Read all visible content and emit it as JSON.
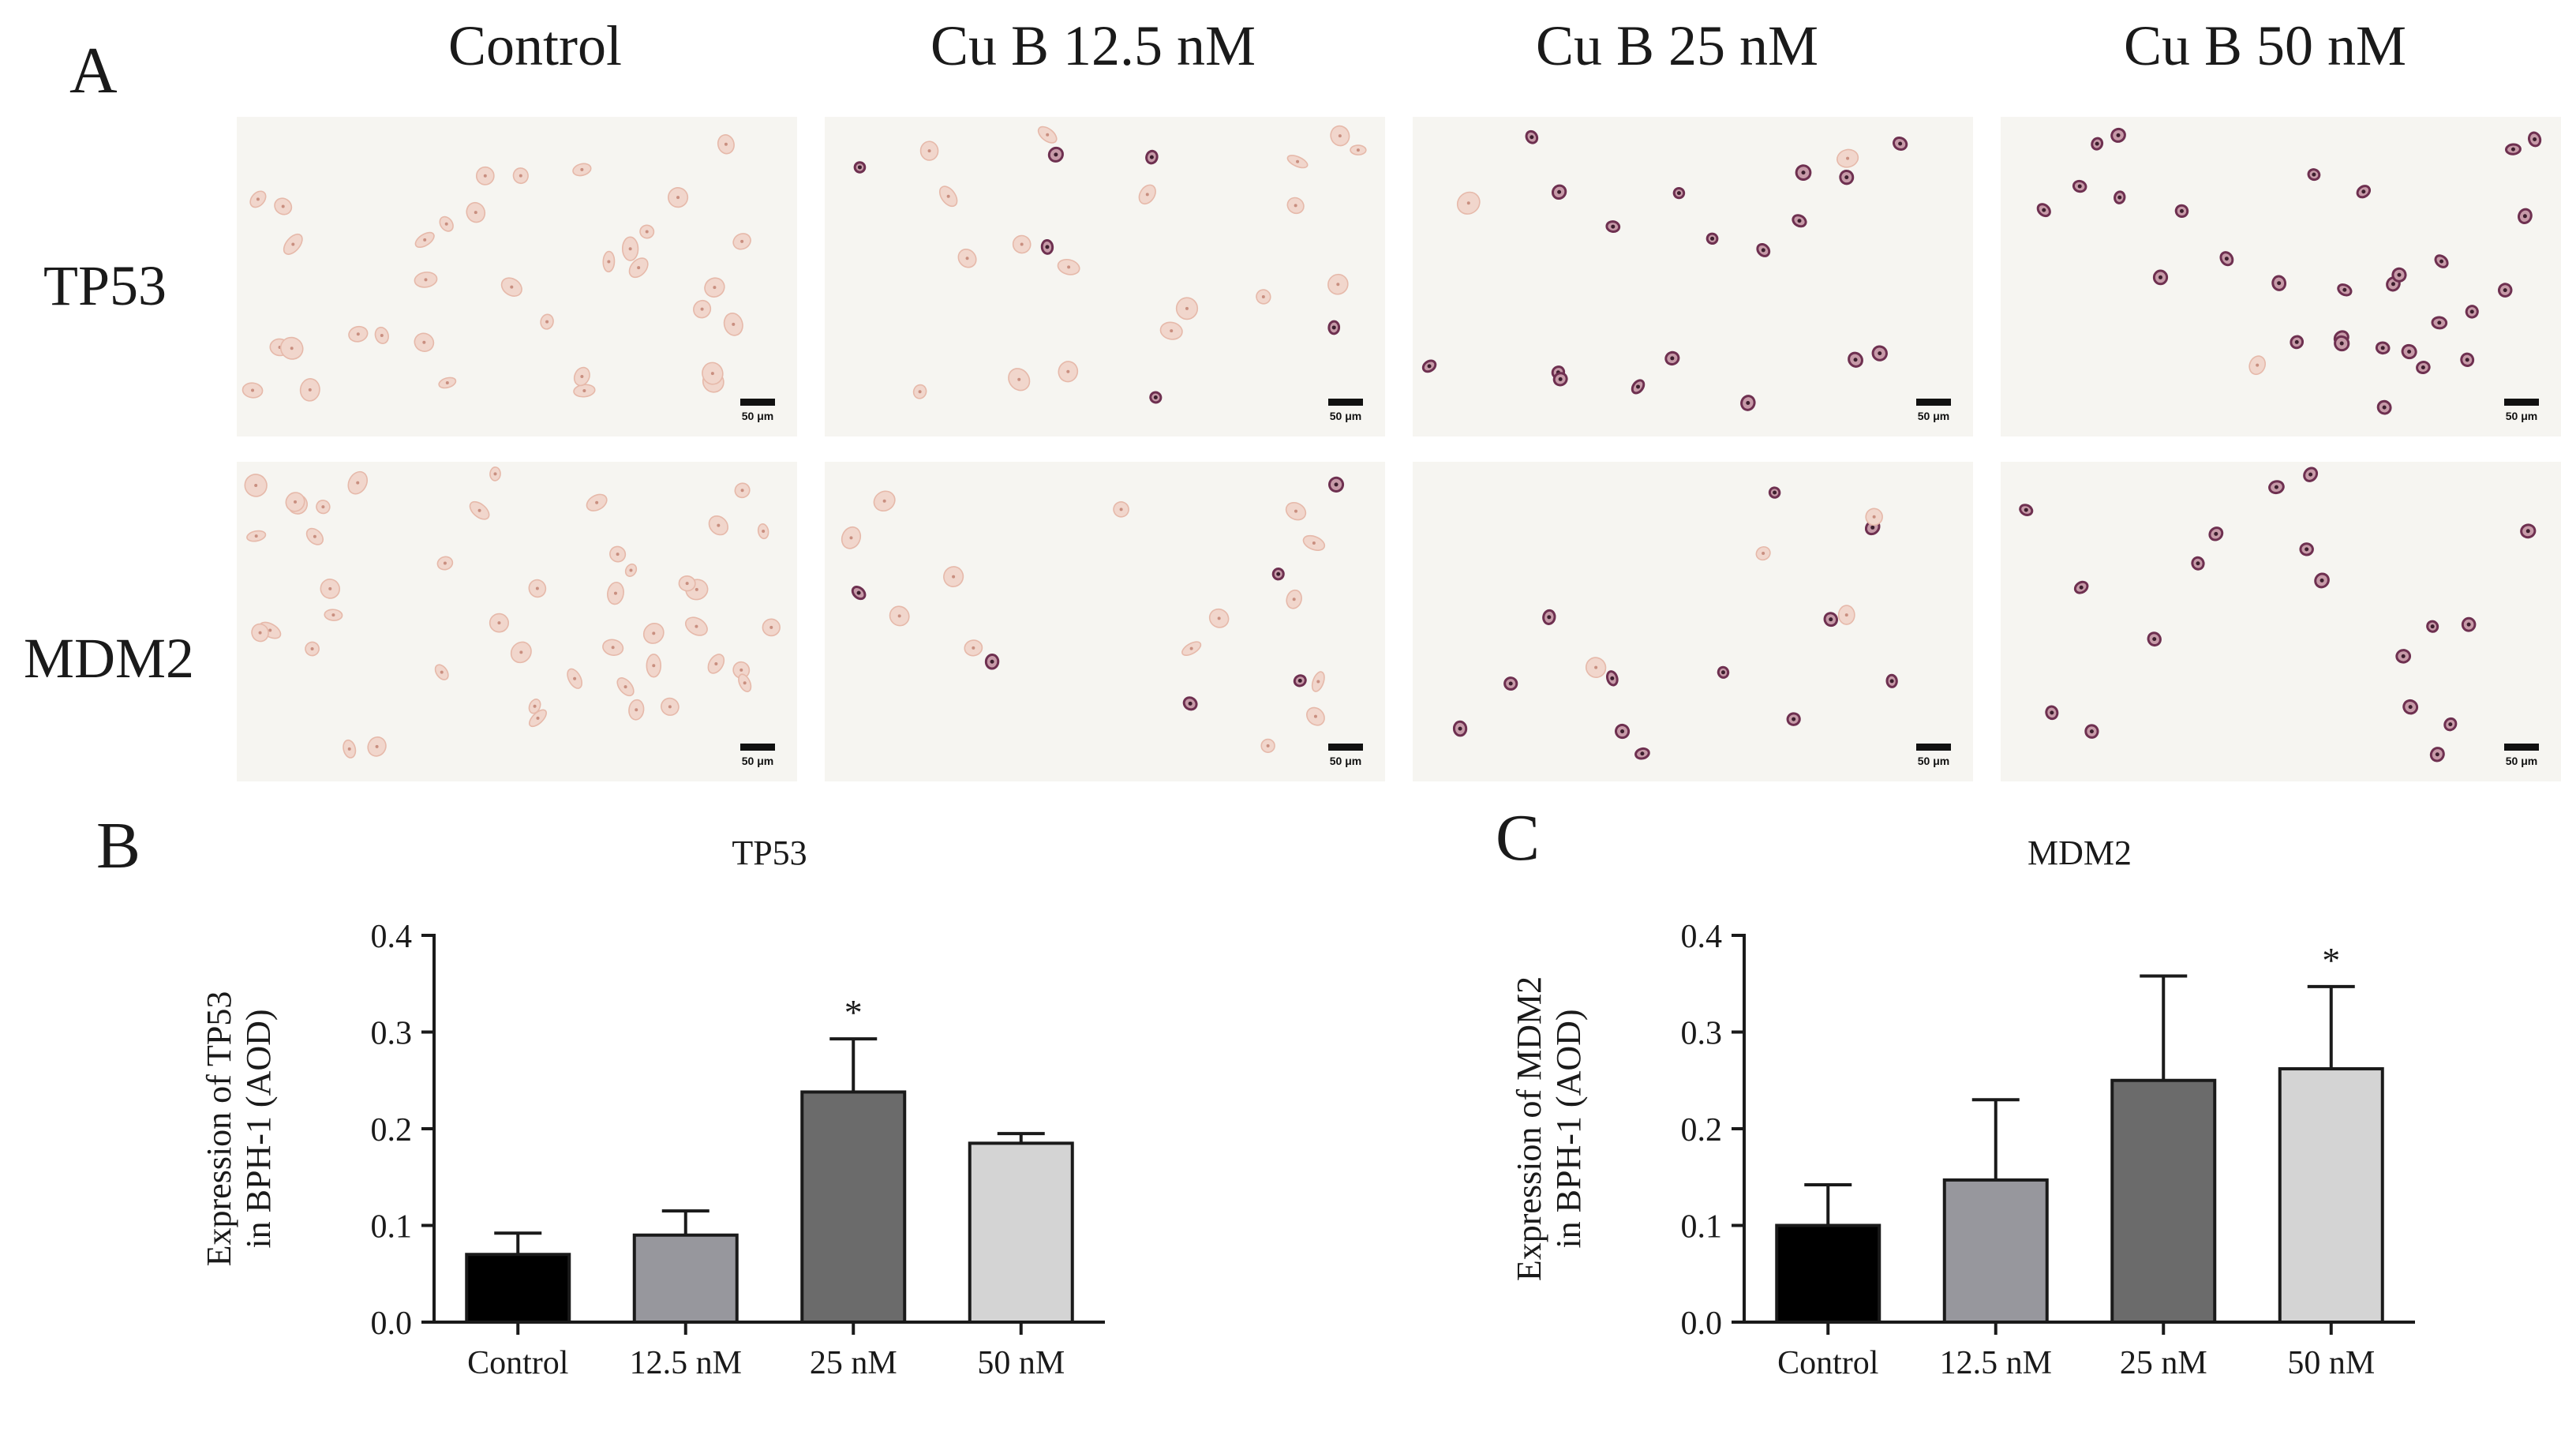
{
  "panel_labels": {
    "a": "A",
    "b": "B",
    "c": "C"
  },
  "micrograph_panel": {
    "columns": [
      "Control",
      "Cu B 12.5 nM",
      "Cu B 25 nM",
      "Cu B 50 nM"
    ],
    "rows": [
      "TP53",
      "MDM2"
    ],
    "scale_label": "50 μm",
    "image_colors": {
      "background": "#f6f5f1",
      "cell_light": "#e6b9aa",
      "cell_dark": "#6e3050"
    }
  },
  "chart_data": [
    {
      "type": "bar",
      "title": "TP53",
      "categories": [
        "Control",
        "12.5 nM",
        "25 nM",
        "50 nM"
      ],
      "values": [
        0.07,
        0.09,
        0.238,
        0.185
      ],
      "errors": [
        0.022,
        0.025,
        0.055,
        0.01
      ],
      "significance": [
        "",
        "",
        "*",
        ""
      ],
      "ylabel_line1": "Expression of TP53",
      "ylabel_line2": "in BPH-1 (AOD)",
      "xlabel": "",
      "ylim": [
        0,
        0.4
      ],
      "yticks": [
        "0.0",
        "0.1",
        "0.2",
        "0.3",
        "0.4"
      ],
      "bar_colors": [
        "#000000",
        "#97979d",
        "#6b6b6b",
        "#d4d4d4"
      ],
      "grid": false,
      "legend": "none"
    },
    {
      "type": "bar",
      "title": "MDM2",
      "categories": [
        "Control",
        "12.5 nM",
        "25 nM",
        "50 nM"
      ],
      "values": [
        0.1,
        0.147,
        0.25,
        0.262
      ],
      "errors": [
        0.042,
        0.083,
        0.108,
        0.085
      ],
      "significance": [
        "",
        "",
        "",
        "*"
      ],
      "ylabel_line1": "Expression of MDM2",
      "ylabel_line2": "in BPH-1 (AOD)",
      "xlabel": "",
      "ylim": [
        0,
        0.4
      ],
      "yticks": [
        "0.0",
        "0.1",
        "0.2",
        "0.3",
        "0.4"
      ],
      "bar_colors": [
        "#000000",
        "#97979d",
        "#6b6b6b",
        "#d4d4d4"
      ],
      "grid": false,
      "legend": "none"
    }
  ]
}
